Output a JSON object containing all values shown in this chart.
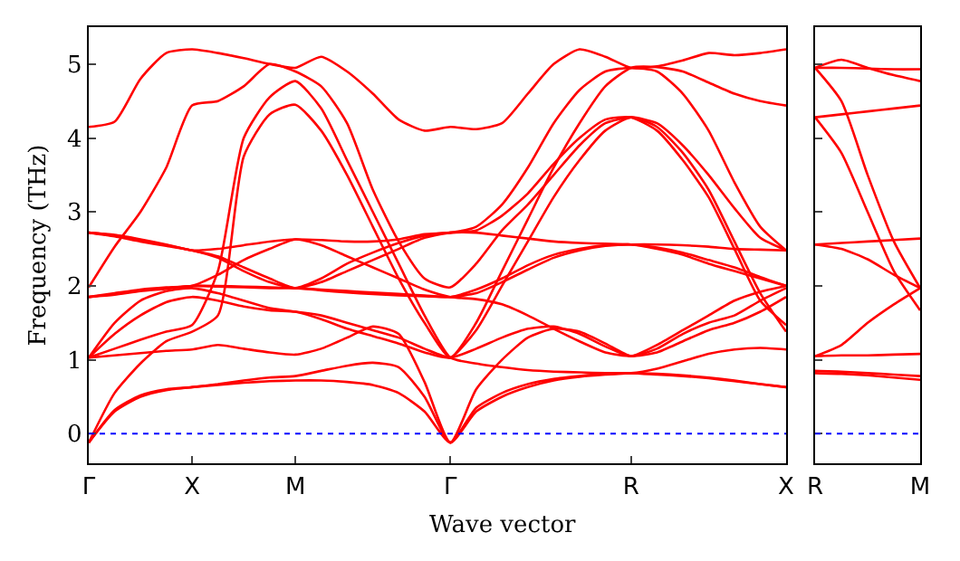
{
  "chart_data": [
    {
      "type": "line",
      "xlabel": "Wave vector",
      "ylabel": "Frequency (THz)",
      "categories": [
        "Γ",
        null,
        null,
        null,
        "X",
        null,
        null,
        null,
        "M",
        null,
        null,
        null,
        null,
        null,
        "Γ",
        null,
        null,
        null,
        null,
        null,
        null,
        "R",
        null,
        null,
        null,
        null,
        null,
        "X"
      ],
      "series": [
        {
          "color": "#ff0000",
          "values": [
            -0.12,
            0.3,
            0.5,
            0.59,
            0.63,
            0.66,
            0.69,
            0.71,
            0.72,
            0.72,
            0.7,
            0.66,
            0.55,
            0.3,
            -0.12,
            0.35,
            0.55,
            0.67,
            0.74,
            0.78,
            0.81,
            0.82,
            0.81,
            0.79,
            0.76,
            0.72,
            0.67,
            0.63
          ]
        },
        {
          "color": "#ff0000",
          "values": [
            -0.12,
            0.32,
            0.52,
            0.6,
            0.63,
            0.67,
            0.72,
            0.76,
            0.78,
            0.85,
            0.92,
            0.96,
            0.9,
            0.5,
            -0.12,
            0.6,
            1.0,
            1.3,
            1.42,
            1.38,
            1.22,
            1.05,
            1.15,
            1.35,
            1.5,
            1.6,
            1.8,
            1.97
          ]
        },
        {
          "color": "#ff0000",
          "values": [
            -0.12,
            0.55,
            0.95,
            1.25,
            1.38,
            1.6,
            3.75,
            4.32,
            4.45,
            4.1,
            3.5,
            2.8,
            2.1,
            1.5,
            1.03,
            1.5,
            2.2,
            2.9,
            3.6,
            4.2,
            4.7,
            4.95,
            4.96,
            4.9,
            4.75,
            4.6,
            4.5,
            4.44
          ]
        },
        {
          "color": "#ff0000",
          "values": [
            1.03,
            1.06,
            1.09,
            1.12,
            1.14,
            1.2,
            1.15,
            1.1,
            1.07,
            1.15,
            1.3,
            1.45,
            1.35,
            0.7,
            -0.12,
            0.3,
            0.5,
            0.63,
            0.72,
            0.77,
            0.8,
            0.82,
            0.8,
            0.78,
            0.75,
            0.71,
            0.67,
            0.63
          ]
        },
        {
          "color": "#ff0000",
          "values": [
            1.03,
            1.15,
            1.27,
            1.38,
            1.47,
            2.2,
            4.0,
            4.55,
            4.77,
            4.4,
            3.7,
            3.0,
            2.3,
            1.6,
            1.03,
            0.95,
            0.9,
            0.86,
            0.84,
            0.83,
            0.82,
            0.82,
            0.88,
            0.98,
            1.08,
            1.14,
            1.16,
            1.14
          ]
        },
        {
          "color": "#ff0000",
          "values": [
            1.03,
            1.35,
            1.6,
            1.78,
            1.85,
            1.8,
            1.72,
            1.67,
            1.65,
            1.6,
            1.5,
            1.4,
            1.3,
            1.15,
            1.03,
            1.15,
            1.3,
            1.42,
            1.45,
            1.35,
            1.18,
            1.05,
            1.2,
            1.4,
            1.6,
            1.8,
            1.92,
            2.0
          ]
        },
        {
          "color": "#ff0000",
          "values": [
            1.03,
            1.5,
            1.8,
            1.93,
            1.97,
            1.9,
            1.8,
            1.7,
            1.65,
            1.55,
            1.42,
            1.32,
            1.22,
            1.1,
            1.03,
            1.4,
            2.0,
            2.6,
            3.2,
            3.7,
            4.1,
            4.28,
            4.15,
            3.8,
            3.3,
            2.6,
            1.9,
            1.38
          ]
        },
        {
          "color": "#ff0000",
          "values": [
            1.85,
            1.9,
            1.95,
            1.98,
            2.0,
            2.15,
            2.35,
            2.5,
            2.63,
            2.55,
            2.4,
            2.25,
            2.1,
            1.95,
            1.85,
            1.82,
            1.75,
            1.6,
            1.42,
            1.25,
            1.1,
            1.05,
            1.1,
            1.25,
            1.4,
            1.5,
            1.65,
            1.85
          ]
        },
        {
          "color": "#ff0000",
          "values": [
            1.85,
            1.89,
            1.94,
            1.97,
            2.0,
            2.0,
            1.99,
            1.98,
            1.97,
            1.95,
            1.93,
            1.91,
            1.89,
            1.87,
            1.85,
            1.95,
            2.1,
            2.28,
            2.42,
            2.5,
            2.55,
            2.56,
            2.56,
            2.55,
            2.53,
            2.5,
            2.49,
            2.48
          ]
        },
        {
          "color": "#ff0000",
          "values": [
            1.85,
            1.88,
            1.93,
            1.96,
            2.0,
            1.99,
            1.98,
            1.97,
            1.97,
            1.94,
            1.91,
            1.89,
            1.87,
            1.86,
            1.85,
            1.9,
            2.05,
            2.22,
            2.38,
            2.48,
            2.54,
            2.56,
            2.5,
            2.42,
            2.3,
            2.2,
            2.1,
            2.0
          ]
        },
        {
          "color": "#ff0000",
          "values": [
            2.72,
            2.68,
            2.62,
            2.55,
            2.48,
            2.4,
            2.25,
            2.1,
            1.97,
            2.1,
            2.3,
            2.45,
            2.58,
            2.68,
            2.72,
            2.72,
            2.68,
            2.64,
            2.6,
            2.58,
            2.57,
            2.56,
            2.52,
            2.45,
            2.35,
            2.25,
            2.12,
            2.0
          ]
        },
        {
          "color": "#ff0000",
          "values": [
            2.72,
            2.67,
            2.6,
            2.54,
            2.48,
            2.38,
            2.2,
            2.05,
            1.97,
            2.05,
            2.2,
            2.35,
            2.5,
            2.65,
            2.72,
            2.75,
            2.95,
            3.25,
            3.65,
            4.0,
            4.25,
            4.28,
            4.1,
            3.7,
            3.2,
            2.5,
            1.8,
            1.47
          ]
        },
        {
          "color": "#ff0000",
          "values": [
            2.72,
            2.69,
            2.63,
            2.56,
            2.48,
            2.5,
            2.55,
            2.6,
            2.63,
            2.62,
            2.6,
            2.6,
            2.63,
            2.7,
            2.72,
            2.8,
            3.1,
            3.6,
            4.2,
            4.65,
            4.9,
            4.95,
            4.9,
            4.6,
            4.1,
            3.4,
            2.8,
            2.48
          ]
        },
        {
          "color": "#ff0000",
          "values": [
            1.98,
            2.53,
            3.0,
            3.6,
            4.44,
            4.5,
            4.7,
            5.0,
            4.9,
            4.7,
            4.2,
            3.3,
            2.6,
            2.1,
            1.98,
            2.3,
            2.75,
            3.1,
            3.5,
            3.9,
            4.2,
            4.28,
            4.2,
            3.9,
            3.5,
            3.05,
            2.65,
            2.48
          ]
        },
        {
          "color": "#ff0000",
          "values": [
            4.15,
            4.22,
            4.8,
            5.15,
            5.2,
            5.15,
            5.08,
            5.0,
            4.95,
            5.1,
            4.9,
            4.6,
            4.25,
            4.1,
            4.15,
            4.12,
            4.2,
            4.6,
            5.0,
            5.2,
            5.1,
            4.95,
            4.97,
            5.05,
            5.15,
            5.12,
            5.15,
            5.2
          ]
        }
      ],
      "ylim": [
        -0.4,
        5.5
      ],
      "yticks": [
        0,
        1,
        2,
        3,
        4,
        5
      ],
      "ref_lines": [
        {
          "axis": "y",
          "value": 0,
          "color": "#0000ff",
          "line_style": "dotted"
        }
      ],
      "grid": false
    },
    {
      "type": "line",
      "categories": [
        "R",
        null,
        null,
        null,
        "M"
      ],
      "series": [
        {
          "color": "#ff0000",
          "values": [
            0.82,
            0.81,
            0.79,
            0.76,
            0.73
          ]
        },
        {
          "color": "#ff0000",
          "values": [
            0.85,
            0.84,
            0.82,
            0.8,
            0.78
          ]
        },
        {
          "color": "#ff0000",
          "values": [
            1.05,
            1.06,
            1.06,
            1.07,
            1.08
          ]
        },
        {
          "color": "#ff0000",
          "values": [
            1.05,
            1.2,
            1.5,
            1.75,
            1.97
          ]
        },
        {
          "color": "#ff0000",
          "values": [
            2.56,
            2.58,
            2.6,
            2.62,
            2.64
          ]
        },
        {
          "color": "#ff0000",
          "values": [
            2.56,
            2.5,
            2.36,
            2.15,
            1.97
          ]
        },
        {
          "color": "#ff0000",
          "values": [
            4.28,
            3.8,
            3.0,
            2.2,
            1.67
          ]
        },
        {
          "color": "#ff0000",
          "values": [
            4.28,
            4.32,
            4.36,
            4.4,
            4.44
          ]
        },
        {
          "color": "#ff0000",
          "values": [
            4.95,
            4.5,
            3.5,
            2.6,
            1.97
          ]
        },
        {
          "color": "#ff0000",
          "values": [
            4.95,
            4.95,
            4.94,
            4.93,
            4.93
          ]
        },
        {
          "color": "#ff0000",
          "values": [
            4.95,
            5.06,
            4.95,
            4.85,
            4.77
          ]
        }
      ],
      "ylim": [
        -0.4,
        5.5
      ],
      "yticks": [
        0,
        1,
        2,
        3,
        4,
        5
      ],
      "ref_lines": [
        {
          "axis": "y",
          "value": 0,
          "color": "#0000ff",
          "line_style": "dotted"
        }
      ],
      "grid": false,
      "tick_labels": "x"
    }
  ]
}
